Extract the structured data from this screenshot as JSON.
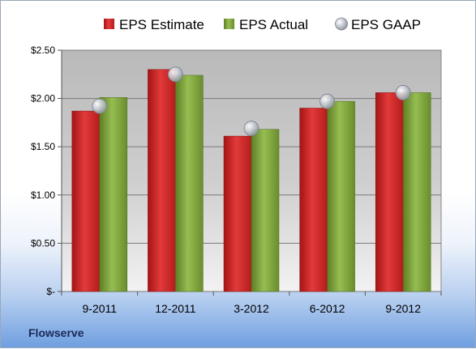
{
  "company": "Flowserve",
  "colors": {
    "estimate": "#d42a2a",
    "actual": "#7fa63c",
    "gaap": "#b8bcc4"
  },
  "chart_data": {
    "type": "bar",
    "categories": [
      "9-2011",
      "12-2011",
      "3-2012",
      "6-2012",
      "9-2012"
    ],
    "series": [
      {
        "name": "EPS Estimate",
        "values": [
          1.87,
          2.3,
          1.61,
          1.9,
          2.06
        ]
      },
      {
        "name": "EPS Actual",
        "values": [
          2.01,
          2.24,
          1.68,
          1.97,
          2.06
        ]
      },
      {
        "name": "EPS GAAP",
        "marker": "circle",
        "values": [
          1.92,
          2.25,
          1.69,
          1.97,
          2.06
        ]
      }
    ],
    "ylim": [
      0,
      2.5
    ],
    "yticks": [
      0,
      0.5,
      1.0,
      1.5,
      2.0,
      2.5
    ],
    "ytick_labels": [
      "$-",
      "$0.50",
      "$1.00",
      "$1.50",
      "$2.00",
      "$2.50"
    ],
    "legend_position": "top",
    "grid": true
  }
}
